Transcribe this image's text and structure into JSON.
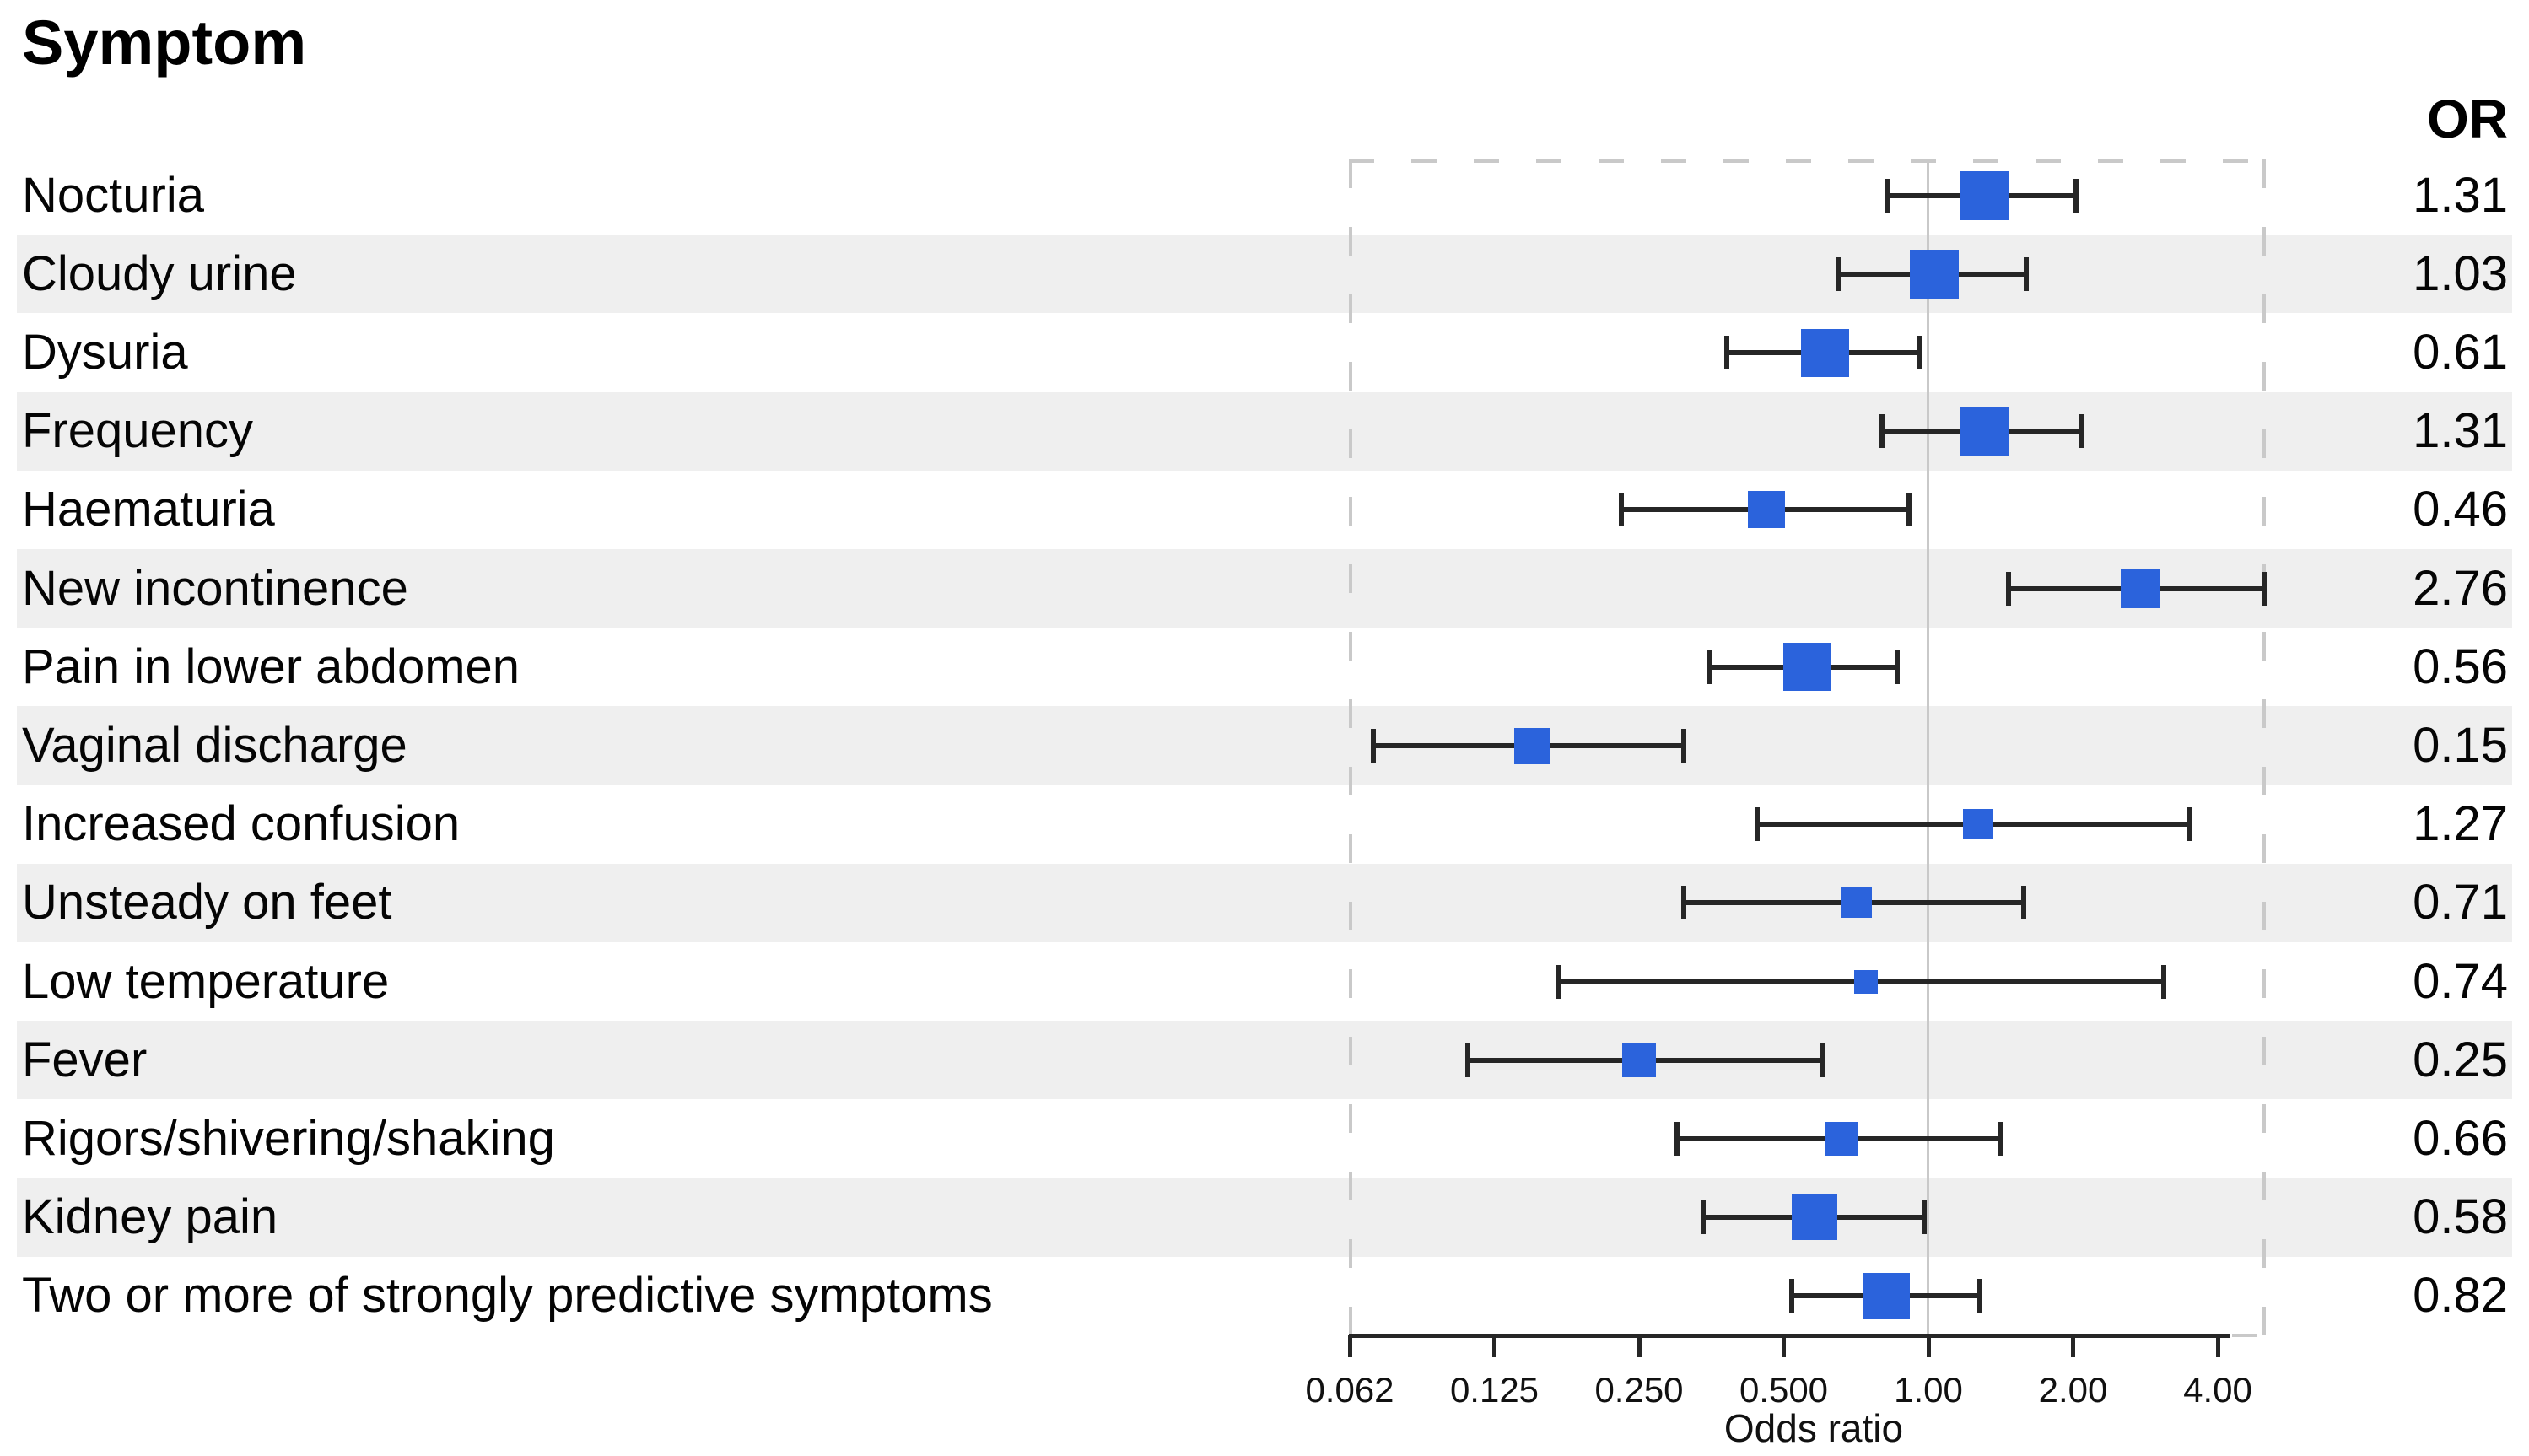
{
  "title": "Symptom",
  "columns": {
    "or_header": "OR"
  },
  "axis": {
    "label": "Odds ratio",
    "scale": "log2",
    "ticks": [
      {
        "text": "0.062",
        "value": 0.0625
      },
      {
        "text": "0.125",
        "value": 0.125
      },
      {
        "text": "0.250",
        "value": 0.25
      },
      {
        "text": "0.500",
        "value": 0.5
      },
      {
        "text": "1.00",
        "value": 1.0
      },
      {
        "text": "2.00",
        "value": 2.0
      },
      {
        "text": "4.00",
        "value": 4.0
      }
    ]
  },
  "colors": {
    "marker": "#2b63dc",
    "whisker": "#262626",
    "axis": "#262626",
    "stripe": "#efefef",
    "border_dash": "#c9c9c9",
    "reference_line": "#c9c9c9"
  },
  "chart_data": {
    "type": "forest",
    "title": "Symptom",
    "xlabel": "Odds ratio",
    "x_scale": "log2",
    "xlim": [
      0.0625,
      5.0
    ],
    "x_ticks": [
      0.062,
      0.125,
      0.25,
      0.5,
      1.0,
      2.0,
      4.0
    ],
    "reference_value": 1.0,
    "value_column_header": "OR",
    "grid": false,
    "legend": false,
    "rows": [
      {
        "label": "Nocturia",
        "or": 1.31,
        "or_text": "1.31",
        "ci_low": 0.82,
        "ci_high": 2.03,
        "marker_size": 58,
        "shaded": false
      },
      {
        "label": "Cloudy urine",
        "or": 1.03,
        "or_text": "1.03",
        "ci_low": 0.65,
        "ci_high": 1.6,
        "marker_size": 58,
        "shaded": true
      },
      {
        "label": "Dysuria",
        "or": 0.61,
        "or_text": "0.61",
        "ci_low": 0.38,
        "ci_high": 0.96,
        "marker_size": 57,
        "shaded": false
      },
      {
        "label": "Frequency",
        "or": 1.31,
        "or_text": "1.31",
        "ci_low": 0.8,
        "ci_high": 2.09,
        "marker_size": 58,
        "shaded": true
      },
      {
        "label": "Haematuria",
        "or": 0.46,
        "or_text": "0.46",
        "ci_low": 0.23,
        "ci_high": 0.91,
        "marker_size": 44,
        "shaded": false
      },
      {
        "label": "New incontinence",
        "or": 2.76,
        "or_text": "2.76",
        "ci_low": 1.47,
        "ci_high": 5.0,
        "marker_size": 46,
        "shaded": true
      },
      {
        "label": "Pain in lower abdomen",
        "or": 0.56,
        "or_text": "0.56",
        "ci_low": 0.35,
        "ci_high": 0.86,
        "marker_size": 57,
        "shaded": false
      },
      {
        "label": "Vaginal discharge",
        "or": 0.15,
        "or_text": "0.15",
        "ci_low": 0.07,
        "ci_high": 0.31,
        "marker_size": 43,
        "shaded": true
      },
      {
        "label": "Increased confusion",
        "or": 1.27,
        "or_text": "1.27",
        "ci_low": 0.44,
        "ci_high": 3.48,
        "marker_size": 36,
        "shaded": false
      },
      {
        "label": "Unsteady on feet",
        "or": 0.71,
        "or_text": "0.71",
        "ci_low": 0.31,
        "ci_high": 1.58,
        "marker_size": 36,
        "shaded": true
      },
      {
        "label": "Low temperature",
        "or": 0.74,
        "or_text": "0.74",
        "ci_low": 0.17,
        "ci_high": 3.09,
        "marker_size": 28,
        "shaded": false
      },
      {
        "label": "Fever",
        "or": 0.25,
        "or_text": "0.25",
        "ci_low": 0.11,
        "ci_high": 0.6,
        "marker_size": 40,
        "shaded": true
      },
      {
        "label": "Rigors/shivering/shaking",
        "or": 0.66,
        "or_text": "0.66",
        "ci_low": 0.3,
        "ci_high": 1.41,
        "marker_size": 40,
        "shaded": false
      },
      {
        "label": "Kidney pain",
        "or": 0.58,
        "or_text": "0.58",
        "ci_low": 0.34,
        "ci_high": 0.98,
        "marker_size": 54,
        "shaded": true
      },
      {
        "label": "Two or more of strongly predictive symptoms",
        "or": 0.82,
        "or_text": "0.82",
        "ci_low": 0.52,
        "ci_high": 1.28,
        "marker_size": 55,
        "shaded": false
      }
    ]
  }
}
